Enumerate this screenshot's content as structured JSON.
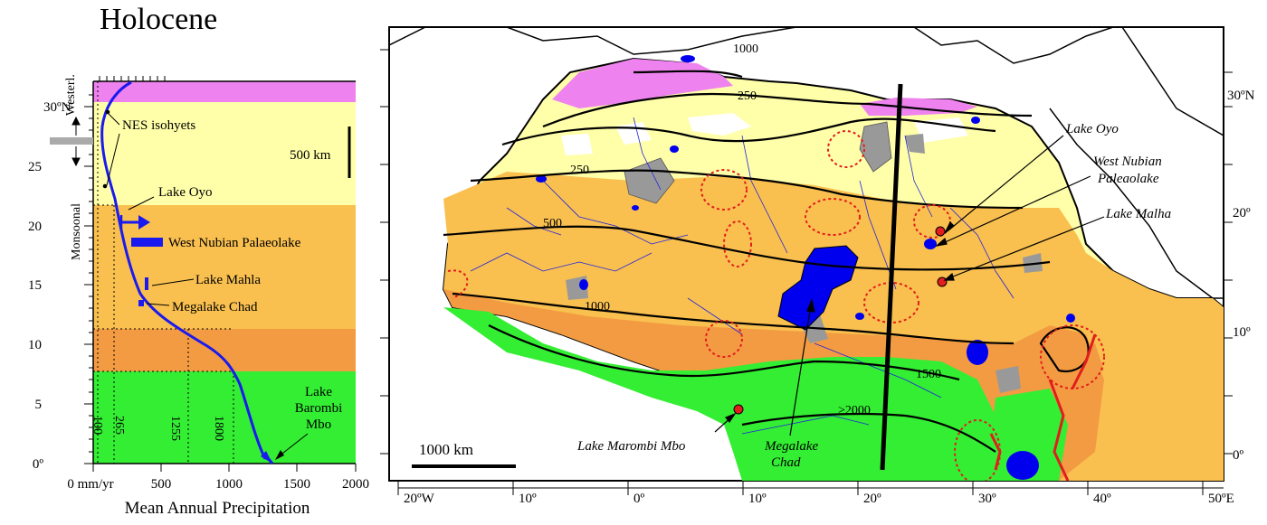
{
  "title": "Holocene",
  "left_panel": {
    "lat_ticks": [
      "30ºN",
      "25",
      "20",
      "15",
      "10",
      "5",
      "0º"
    ],
    "x_ticks": [
      "0 mm/yr",
      "500",
      "1000",
      "1500",
      "2000"
    ],
    "xlabel": "Mean Annual Precipitation",
    "vertical_labels": {
      "westerlies": "Westerl.",
      "monsoonal": "Monsoonal"
    },
    "annotations": {
      "nes": "NES isohyets",
      "lake_oyo": "Lake Oyo",
      "west_nubian": "West Nubian Palaeolake",
      "lake_mahla": "Lake Mahla",
      "megalake_chad": "Megalake Chad",
      "lake_barombi_1": "Lake",
      "lake_barombi_2": "Barombi",
      "lake_barombi_3": "Mbo"
    },
    "scale_label": "500 km",
    "isohyet_values": [
      "100",
      "265",
      "1255",
      "1800"
    ],
    "zone_colors": {
      "westerlies": "#ee82ee",
      "dry": "#ffffaa",
      "semi_arid": "#f9c04f",
      "sub_humid": "#f39b42",
      "humid": "#33ee33"
    },
    "curve_color": "#1a1aee"
  },
  "map": {
    "lat_labels": [
      "30ºN",
      "20º",
      "10º",
      "0º"
    ],
    "lon_labels": [
      "20ºW",
      "10º",
      "0º",
      "10º",
      "20º",
      "30º",
      "40º",
      "50ºE"
    ],
    "isohyets": [
      "1000",
      "250",
      "250",
      "500",
      "1000",
      "1500",
      ">2000"
    ],
    "scale_label": "1000 km",
    "site_labels": {
      "lake_oyo": "Lake Oyo",
      "west_nubian_1": "West Nubian",
      "west_nubian_2": "Paleaolake",
      "lake_malha": "Lake Malha",
      "lake_marombi": "Lake Marombi Mbo",
      "megalake_1": "Megalake",
      "megalake_2": "Chad"
    }
  }
}
